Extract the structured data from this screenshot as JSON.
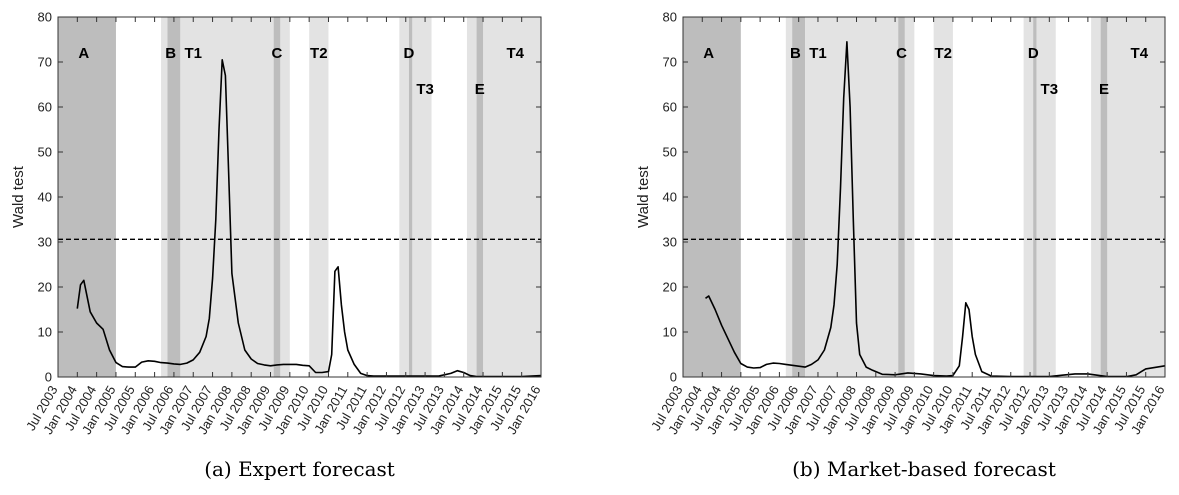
{
  "chart_data": [
    {
      "type": "line",
      "caption": "(a) Expert forecast",
      "ylabel": "Wald test",
      "ylim": [
        0,
        80
      ],
      "yticks": [
        0,
        10,
        20,
        30,
        40,
        50,
        60,
        70,
        80
      ],
      "xlim": [
        "2003-07",
        "2016-01"
      ],
      "xticks": [
        "Jul 2003",
        "Jan 2004",
        "Jul 2004",
        "Jan 2005",
        "Jul 2005",
        "Jan 2006",
        "Jul 2006",
        "Jan 2007",
        "Jul 2007",
        "Jan 2008",
        "Jul 2008",
        "Jan 2009",
        "Jul 2009",
        "Jan 2010",
        "Jul 2010",
        "Jan 2011",
        "Jul 2011",
        "Jan 2012",
        "Jul 2012",
        "Jan 2013",
        "Jul 2013",
        "Jan 2014",
        "Jul 2014",
        "Jan 2015",
        "Jul 2015",
        "Jan 2016"
      ],
      "threshold": 30.6,
      "shaded_regions": [
        {
          "start": "2003-07",
          "end": "2005-01",
          "tone": "dark"
        },
        {
          "start": "2006-03",
          "end": "2006-07",
          "tone": "light"
        },
        {
          "start": "2006-05",
          "end": "2006-09",
          "tone": "dark"
        },
        {
          "start": "2006-09",
          "end": "2009-07",
          "tone": "light"
        },
        {
          "start": "2009-02",
          "end": "2009-04",
          "tone": "dark"
        },
        {
          "start": "2010-01",
          "end": "2010-07",
          "tone": "light"
        },
        {
          "start": "2012-05",
          "end": "2013-03",
          "tone": "light"
        },
        {
          "start": "2012-08",
          "end": "2012-09",
          "tone": "dark"
        },
        {
          "start": "2014-02",
          "end": "2016-01",
          "tone": "light"
        },
        {
          "start": "2014-05",
          "end": "2014-07",
          "tone": "dark"
        }
      ],
      "region_labels": [
        {
          "text": "A",
          "x": "2004-03",
          "y": 72
        },
        {
          "text": "B",
          "x": "2006-06",
          "y": 72
        },
        {
          "text": "T1",
          "x": "2007-01",
          "y": 72
        },
        {
          "text": "C",
          "x": "2009-03",
          "y": 72
        },
        {
          "text": "T2",
          "x": "2010-04",
          "y": 72
        },
        {
          "text": "D",
          "x": "2012-08",
          "y": 72
        },
        {
          "text": "T3",
          "x": "2013-01",
          "y": 64
        },
        {
          "text": "E",
          "x": "2014-06",
          "y": 64
        },
        {
          "text": "T4",
          "x": "2015-05",
          "y": 72
        }
      ],
      "series": [
        {
          "x": [
            "2004-01",
            "2004-02",
            "2004-03",
            "2004-05",
            "2004-07",
            "2004-09",
            "2004-11",
            "2005-01",
            "2005-03",
            "2005-05",
            "2005-07",
            "2005-09",
            "2005-11",
            "2006-01",
            "2006-03",
            "2006-05",
            "2006-07",
            "2006-09",
            "2006-11",
            "2007-01",
            "2007-03",
            "2007-05",
            "2007-06",
            "2007-07",
            "2007-08",
            "2007-09",
            "2007-10",
            "2007-11",
            "2007-12",
            "2008-01",
            "2008-03",
            "2008-05",
            "2008-07",
            "2008-09",
            "2008-11",
            "2009-01",
            "2009-03",
            "2009-05",
            "2009-07",
            "2009-09",
            "2009-11",
            "2010-01",
            "2010-03",
            "2010-05",
            "2010-07",
            "2010-08",
            "2010-09",
            "2010-10",
            "2010-11",
            "2010-12",
            "2011-01",
            "2011-03",
            "2011-05",
            "2011-07",
            "2011-09",
            "2012-01",
            "2012-07",
            "2013-01",
            "2013-03",
            "2013-05",
            "2013-07",
            "2013-09",
            "2013-11",
            "2014-01",
            "2014-03",
            "2014-05",
            "2014-07",
            "2015-01",
            "2015-07",
            "2016-01"
          ],
          "values": [
            15.2,
            20.5,
            21.5,
            14.5,
            12,
            10.6,
            6,
            3.2,
            2.3,
            2.2,
            2.2,
            3.3,
            3.6,
            3.5,
            3.2,
            3.1,
            2.9,
            2.8,
            3.1,
            3.8,
            5.5,
            9,
            13,
            22,
            35,
            55,
            70.5,
            67,
            45,
            23,
            12,
            6,
            4,
            3,
            2.7,
            2.5,
            2.7,
            2.8,
            2.8,
            2.8,
            2.6,
            2.5,
            1,
            1,
            1.2,
            5,
            23.5,
            24.5,
            16,
            10,
            6,
            2.8,
            0.8,
            0.3,
            0.2,
            0.2,
            0.2,
            0.2,
            0.2,
            0.2,
            0.5,
            0.8,
            1.4,
            1,
            0.3,
            0.1,
            0.1,
            0.1,
            0.1,
            0.3
          ]
        }
      ]
    },
    {
      "type": "line",
      "caption": "(b) Market-based forecast",
      "ylabel": "Wald test",
      "ylim": [
        0,
        80
      ],
      "yticks": [
        0,
        10,
        20,
        30,
        40,
        50,
        60,
        70,
        80
      ],
      "xlim": [
        "2003-07",
        "2016-01"
      ],
      "xticks": [
        "Jul 2003",
        "Jan 2004",
        "Jul 2004",
        "Jan 2005",
        "Jul 2005",
        "Jan 2006",
        "Jul 2006",
        "Jan 2007",
        "Jul 2007",
        "Jan 2008",
        "Jul 2008",
        "Jan 2009",
        "Jul 2009",
        "Jan 2010",
        "Jul 2010",
        "Jan 2011",
        "Jul 2011",
        "Jan 2012",
        "Jul 2012",
        "Jan 2013",
        "Jul 2013",
        "Jan 2014",
        "Jul 2014",
        "Jan 2015",
        "Jul 2015",
        "Jan 2016"
      ],
      "threshold": 30.6,
      "shaded_regions": [
        {
          "start": "2003-07",
          "end": "2005-01",
          "tone": "dark"
        },
        {
          "start": "2006-03",
          "end": "2006-07",
          "tone": "light"
        },
        {
          "start": "2006-05",
          "end": "2006-09",
          "tone": "dark"
        },
        {
          "start": "2006-09",
          "end": "2009-07",
          "tone": "light"
        },
        {
          "start": "2009-02",
          "end": "2009-04",
          "tone": "dark"
        },
        {
          "start": "2010-01",
          "end": "2010-07",
          "tone": "light"
        },
        {
          "start": "2012-05",
          "end": "2013-03",
          "tone": "light"
        },
        {
          "start": "2012-08",
          "end": "2012-09",
          "tone": "dark"
        },
        {
          "start": "2014-02",
          "end": "2016-01",
          "tone": "light"
        },
        {
          "start": "2014-05",
          "end": "2014-07",
          "tone": "dark"
        }
      ],
      "region_labels": [
        {
          "text": "A",
          "x": "2004-03",
          "y": 72
        },
        {
          "text": "B",
          "x": "2006-06",
          "y": 72
        },
        {
          "text": "T1",
          "x": "2007-01",
          "y": 72
        },
        {
          "text": "C",
          "x": "2009-03",
          "y": 72
        },
        {
          "text": "T2",
          "x": "2010-04",
          "y": 72
        },
        {
          "text": "D",
          "x": "2012-08",
          "y": 72
        },
        {
          "text": "T3",
          "x": "2013-01",
          "y": 64
        },
        {
          "text": "E",
          "x": "2014-06",
          "y": 64
        },
        {
          "text": "T4",
          "x": "2015-05",
          "y": 72
        }
      ],
      "series": [
        {
          "x": [
            "2004-02",
            "2004-03",
            "2004-05",
            "2004-07",
            "2004-09",
            "2004-11",
            "2005-01",
            "2005-03",
            "2005-05",
            "2005-07",
            "2005-09",
            "2005-11",
            "2006-01",
            "2006-03",
            "2006-05",
            "2006-07",
            "2006-09",
            "2006-11",
            "2007-01",
            "2007-03",
            "2007-05",
            "2007-06",
            "2007-07",
            "2007-08",
            "2007-09",
            "2007-10",
            "2007-11",
            "2007-12",
            "2008-01",
            "2008-02",
            "2008-04",
            "2008-06",
            "2008-09",
            "2009-01",
            "2009-05",
            "2009-09",
            "2010-01",
            "2010-05",
            "2010-07",
            "2010-09",
            "2010-10",
            "2010-11",
            "2010-12",
            "2011-01",
            "2011-02",
            "2011-04",
            "2011-07",
            "2012-01",
            "2012-07",
            "2013-01",
            "2013-05",
            "2013-09",
            "2014-01",
            "2014-07",
            "2015-01",
            "2015-04",
            "2015-07",
            "2016-01"
          ],
          "values": [
            17.5,
            18,
            15,
            11.5,
            8.5,
            5.5,
            3,
            2.2,
            2,
            2.1,
            2.8,
            3.1,
            3,
            2.8,
            2.6,
            2.4,
            2.2,
            2.8,
            3.8,
            6,
            11,
            16,
            25,
            42,
            62,
            74.5,
            60,
            35,
            12,
            5,
            2.2,
            1.5,
            0.6,
            0.5,
            0.9,
            0.7,
            0.3,
            0.2,
            0.3,
            2.5,
            9,
            16.5,
            15,
            9,
            5,
            1.2,
            0.2,
            0.1,
            0.1,
            0.1,
            0.4,
            0.7,
            0.7,
            0.1,
            0.1,
            0.5,
            1.8,
            2.5
          ]
        }
      ]
    }
  ]
}
